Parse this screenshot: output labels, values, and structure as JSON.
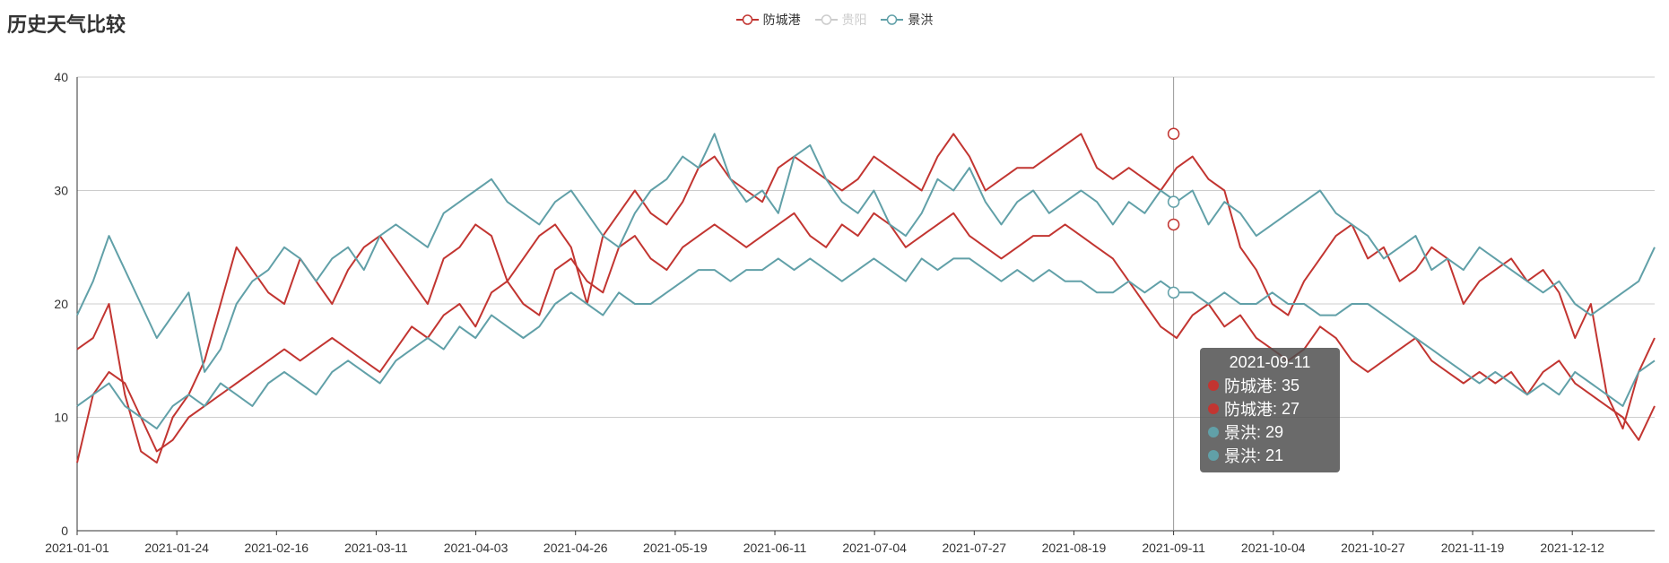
{
  "title": "历史天气比较",
  "legend": [
    {
      "name": "防城港",
      "color": "#c23531",
      "active": true
    },
    {
      "name": "贵阳",
      "color": "#cccccc",
      "active": false
    },
    {
      "name": "景洪",
      "color": "#61a0a8",
      "active": true
    }
  ],
  "tooltip": {
    "title": "2021-09-11",
    "rows": [
      {
        "series": "防城港",
        "value": 35,
        "color": "#c23531"
      },
      {
        "series": "防城港",
        "value": 27,
        "color": "#c23531"
      },
      {
        "series": "景洪",
        "value": 29,
        "color": "#61a0a8"
      },
      {
        "series": "景洪",
        "value": 21,
        "color": "#61a0a8"
      }
    ]
  },
  "chart_data": {
    "type": "line",
    "x_ticks": [
      "2021-01-01",
      "2021-01-24",
      "2021-02-16",
      "2021-03-11",
      "2021-04-03",
      "2021-04-26",
      "2021-05-19",
      "2021-06-11",
      "2021-07-04",
      "2021-07-27",
      "2021-08-19",
      "2021-09-11",
      "2021-10-04",
      "2021-10-27",
      "2021-11-19",
      "2021-12-12"
    ],
    "xlim": [
      "2021-01-01",
      "2021-12-31"
    ],
    "y_ticks": [
      0,
      10,
      20,
      30,
      40
    ],
    "ylim": [
      0,
      40
    ],
    "grid": true,
    "highlight_date": "2021-09-11",
    "series": [
      {
        "name": "防城港",
        "color": "#c23531",
        "values": [
          16,
          17,
          20,
          12,
          7,
          6,
          10,
          12,
          15,
          20,
          25,
          23,
          21,
          20,
          24,
          22,
          20,
          23,
          25,
          26,
          24,
          22,
          20,
          24,
          25,
          27,
          26,
          22,
          24,
          26,
          27,
          25,
          20,
          26,
          28,
          30,
          28,
          27,
          29,
          32,
          33,
          31,
          30,
          29,
          32,
          33,
          32,
          31,
          30,
          31,
          33,
          32,
          31,
          30,
          33,
          35,
          33,
          30,
          31,
          32,
          32,
          33,
          34,
          35,
          32,
          31,
          32,
          31,
          30,
          32,
          33,
          31,
          30,
          25,
          23,
          20,
          19,
          22,
          24,
          26,
          27,
          24,
          25,
          22,
          23,
          25,
          24,
          20,
          22,
          23,
          24,
          22,
          23,
          21,
          17,
          20,
          12,
          9,
          14,
          17
        ]
      },
      {
        "name": "防城港",
        "color": "#c23531",
        "values": [
          6,
          12,
          14,
          13,
          10,
          7,
          8,
          10,
          11,
          12,
          13,
          14,
          15,
          16,
          15,
          16,
          17,
          16,
          15,
          14,
          16,
          18,
          17,
          19,
          20,
          18,
          21,
          22,
          20,
          19,
          23,
          24,
          22,
          21,
          25,
          26,
          24,
          23,
          25,
          26,
          27,
          26,
          25,
          26,
          27,
          28,
          26,
          25,
          27,
          26,
          28,
          27,
          25,
          26,
          27,
          28,
          26,
          25,
          24,
          25,
          26,
          26,
          27,
          26,
          25,
          24,
          22,
          20,
          18,
          17,
          19,
          20,
          18,
          19,
          17,
          16,
          15,
          16,
          18,
          17,
          15,
          14,
          15,
          16,
          17,
          15,
          14,
          13,
          14,
          13,
          14,
          12,
          14,
          15,
          13,
          12,
          11,
          10,
          8,
          11
        ]
      },
      {
        "name": "景洪",
        "color": "#61a0a8",
        "values": [
          19,
          22,
          26,
          23,
          20,
          17,
          19,
          21,
          14,
          16,
          20,
          22,
          23,
          25,
          24,
          22,
          24,
          25,
          23,
          26,
          27,
          26,
          25,
          28,
          29,
          30,
          31,
          29,
          28,
          27,
          29,
          30,
          28,
          26,
          25,
          28,
          30,
          31,
          33,
          32,
          35,
          31,
          29,
          30,
          28,
          33,
          34,
          31,
          29,
          28,
          30,
          27,
          26,
          28,
          31,
          30,
          32,
          29,
          27,
          29,
          30,
          28,
          29,
          30,
          29,
          27,
          29,
          28,
          30,
          29,
          30,
          27,
          29,
          28,
          26,
          27,
          28,
          29,
          30,
          28,
          27,
          26,
          24,
          25,
          26,
          23,
          24,
          23,
          25,
          24,
          23,
          22,
          21,
          22,
          20,
          19,
          20,
          21,
          22,
          25
        ]
      },
      {
        "name": "景洪",
        "color": "#61a0a8",
        "values": [
          11,
          12,
          13,
          11,
          10,
          9,
          11,
          12,
          11,
          13,
          12,
          11,
          13,
          14,
          13,
          12,
          14,
          15,
          14,
          13,
          15,
          16,
          17,
          16,
          18,
          17,
          19,
          18,
          17,
          18,
          20,
          21,
          20,
          19,
          21,
          20,
          20,
          21,
          22,
          23,
          23,
          22,
          23,
          23,
          24,
          23,
          24,
          23,
          22,
          23,
          24,
          23,
          22,
          24,
          23,
          24,
          24,
          23,
          22,
          23,
          22,
          23,
          22,
          22,
          21,
          21,
          22,
          21,
          22,
          21,
          21,
          20,
          21,
          20,
          20,
          21,
          20,
          20,
          19,
          19,
          20,
          20,
          19,
          18,
          17,
          16,
          15,
          14,
          13,
          14,
          13,
          12,
          13,
          12,
          14,
          13,
          12,
          11,
          14,
          15
        ]
      }
    ]
  }
}
